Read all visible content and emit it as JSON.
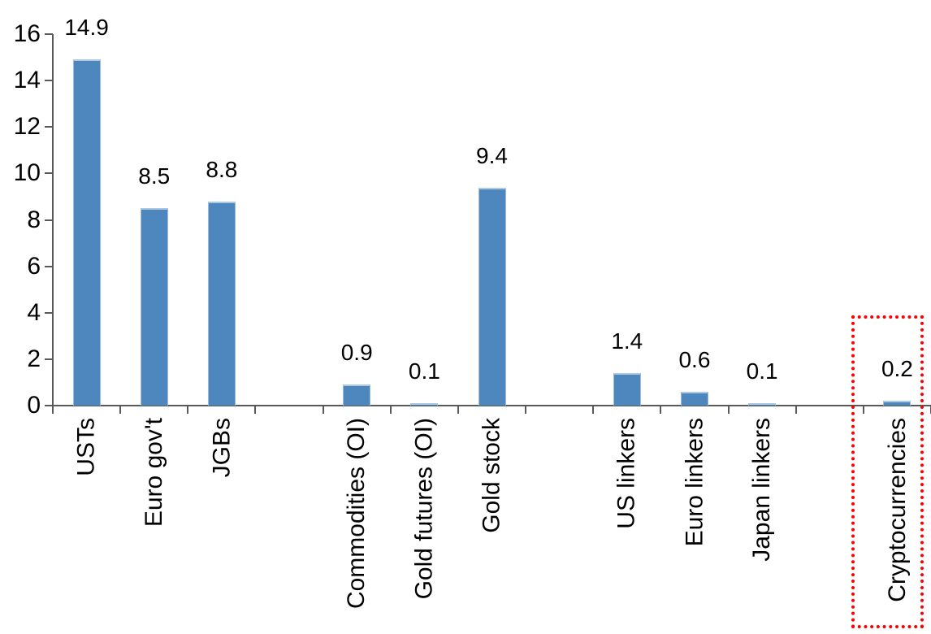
{
  "chart_data": {
    "type": "bar",
    "title": "",
    "categories": [
      "USTs",
      "Euro gov't",
      "JGBs",
      "Commodities (OI)",
      "Gold futures (OI)",
      "Gold stock",
      "US linkers",
      "Euro linkers",
      "Japan linkers",
      "Cryptocurrencies"
    ],
    "values": [
      14.9,
      8.5,
      8.8,
      0.9,
      0.1,
      9.4,
      1.4,
      0.6,
      0.1,
      0.2
    ],
    "data_labels": [
      "14.9",
      "8.5",
      "8.8",
      "0.9",
      "0.1",
      "9.4",
      "1.4",
      "0.6",
      "0.1",
      "0.2"
    ],
    "slot_indices": [
      0,
      1,
      2,
      4,
      5,
      6,
      8,
      9,
      10,
      12
    ],
    "total_slots": 13,
    "y_ticks": [
      0,
      2,
      4,
      6,
      8,
      10,
      12,
      14,
      16
    ],
    "ylim": [
      0,
      16
    ],
    "xlabel": "",
    "ylabel": "",
    "grid": false,
    "legend": false,
    "bar_color": "#4E86BE",
    "bar_edge_color": "#AEC8E2",
    "axis_color": "#595959",
    "text_color": "#000000",
    "highlight": {
      "category": "Cryptocurrencies",
      "style": "red-dotted-box",
      "color": "#FF0000"
    }
  }
}
